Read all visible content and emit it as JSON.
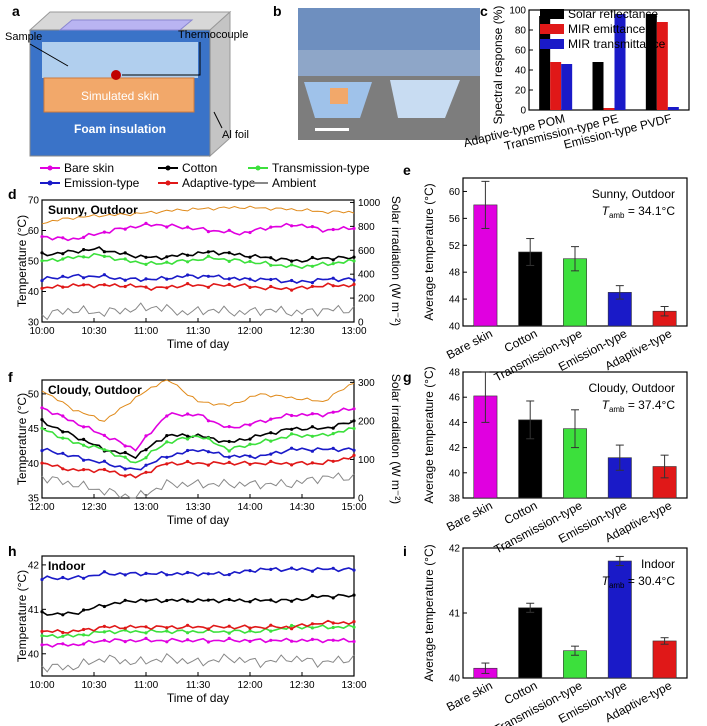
{
  "panel_labels": {
    "a": "a",
    "b": "b",
    "c": "c",
    "d": "d",
    "e": "e",
    "f": "f",
    "g": "g",
    "h": "h",
    "i": "i"
  },
  "panel_a": {
    "sample": "Sample",
    "thermocouple": "Thermocouple",
    "simulated_skin": "Simulated skin",
    "foam_insulation": "Foam insulation",
    "al_foil": "Al foil",
    "colors": {
      "skin": "#f2a86a",
      "foam": "#3a73c8",
      "box": "#d8d8d8",
      "top": "#b9b4f2"
    }
  },
  "panel_b": {
    "description_icon": "photo-outdoor-setup-icon"
  },
  "legend_main": {
    "items": [
      {
        "label": "Bare skin",
        "color": "#e000e0"
      },
      {
        "label": "Cotton",
        "color": "#000000"
      },
      {
        "label": "Transmission-type",
        "color": "#3ce03c"
      },
      {
        "label": "Emission-type",
        "color": "#1a1ac8"
      },
      {
        "label": "Adaptive-type",
        "color": "#e01818"
      },
      {
        "label": "Ambient",
        "color": "#888888"
      }
    ]
  },
  "chart_data": [
    {
      "id": "c",
      "type": "bar",
      "ylabel": "Spectral response (%)",
      "ylim": [
        0,
        100
      ],
      "yticks": [
        "0",
        "20",
        "40",
        "60",
        "80",
        "100"
      ],
      "categories": [
        "Adaptive-type POM",
        "Transmission-type PE",
        "Emission-type PVDF"
      ],
      "series": [
        {
          "name": "Solar reflectance",
          "color": "#000000",
          "values": [
            94,
            48,
            96
          ]
        },
        {
          "name": "MIR emittance",
          "color": "#e01818",
          "values": [
            48,
            2,
            88
          ]
        },
        {
          "name": "MIR transmittance",
          "color": "#1a1ac8",
          "values": [
            46,
            96,
            3
          ]
        }
      ]
    },
    {
      "id": "d",
      "type": "line",
      "annotation": "Sunny, Outdoor",
      "xlabel": "Time of day",
      "ylabel": "Temperature (°C)",
      "y2label": "Solar irradiation (W m⁻²)",
      "xticks": [
        "10:00",
        "10:30",
        "11:00",
        "11:30",
        "12:00",
        "12:30",
        "13:00"
      ],
      "ylim": [
        30,
        70
      ],
      "yticks": [
        "30",
        "40",
        "50",
        "60",
        "70"
      ],
      "y2ticks": [
        "0",
        "200",
        "400",
        "600",
        "800",
        "1000"
      ],
      "series": [
        {
          "name": "Bare skin",
          "values": [
            58,
            57,
            59,
            61,
            62,
            61,
            60,
            59,
            61,
            62,
            60,
            61
          ]
        },
        {
          "name": "Cotton",
          "values": [
            52,
            53,
            54,
            52,
            51,
            52,
            53,
            52,
            51,
            50,
            51,
            51
          ]
        },
        {
          "name": "Transmission-type",
          "values": [
            50,
            51,
            52,
            50,
            49,
            50,
            51,
            50,
            49,
            48,
            49,
            50
          ]
        },
        {
          "name": "Emission-type",
          "values": [
            44,
            45,
            45,
            44,
            44,
            45,
            45,
            44,
            44,
            43,
            44,
            44
          ]
        },
        {
          "name": "Adaptive-type",
          "values": [
            41,
            42,
            42,
            42,
            41,
            42,
            42,
            42,
            41,
            41,
            42,
            42
          ]
        },
        {
          "name": "Ambient",
          "values": [
            32,
            34,
            33,
            34,
            35,
            33,
            34,
            33,
            34,
            33,
            34,
            34
          ]
        },
        {
          "name": "Solar irradiation",
          "color": "#e08a1a",
          "values": [
            830,
            870,
            890,
            900,
            920,
            940,
            950,
            960,
            950,
            940,
            920,
            920
          ]
        }
      ]
    },
    {
      "id": "e",
      "type": "bar",
      "annotation": "Sunny, Outdoor",
      "tamb": "= 34.1°C",
      "ylabel": "Average temperature (°C)",
      "ylim": [
        40,
        62
      ],
      "yticks": [
        "40",
        "44",
        "48",
        "52",
        "56",
        "60"
      ],
      "categories": [
        "Bare skin",
        "Cotton",
        "Transmission-type",
        "Emission-type",
        "Adaptive-type"
      ],
      "values": [
        58.0,
        51.0,
        50.0,
        45.0,
        42.2
      ],
      "errors": [
        3.5,
        2.0,
        1.8,
        1.0,
        0.7
      ]
    },
    {
      "id": "f",
      "type": "line",
      "annotation": "Cloudy, Outdoor",
      "xlabel": "Time of day",
      "ylabel": "Temperature (°C)",
      "y2label": "Solar irradiation (W m⁻²)",
      "xticks": [
        "12:00",
        "12:30",
        "13:00",
        "13:30",
        "14:00",
        "14:30",
        "15:00"
      ],
      "ylim": [
        35,
        52
      ],
      "yticks": [
        "35",
        "40",
        "45",
        "50"
      ],
      "y2ticks": [
        "0",
        "100",
        "200",
        "300"
      ],
      "series": [
        {
          "name": "Bare skin",
          "values": [
            48,
            46,
            44,
            42,
            47,
            47,
            45,
            46,
            47,
            47,
            48
          ]
        },
        {
          "name": "Cotton",
          "values": [
            46,
            44,
            42,
            41,
            44,
            44,
            43,
            44,
            45,
            45,
            46
          ]
        },
        {
          "name": "Transmission-type",
          "values": [
            45,
            43,
            42,
            40,
            43,
            44,
            42,
            43,
            44,
            44,
            45
          ]
        },
        {
          "name": "Emission-type",
          "values": [
            42,
            41,
            40,
            39,
            41,
            42,
            41,
            41,
            42,
            42,
            42
          ]
        },
        {
          "name": "Adaptive-type",
          "values": [
            40,
            39,
            39,
            38,
            40,
            40,
            40,
            40,
            40,
            40,
            41
          ]
        },
        {
          "name": "Ambient",
          "values": [
            38,
            37,
            36,
            35,
            37,
            37,
            37,
            37,
            37,
            38,
            38
          ]
        },
        {
          "name": "Solar irradiation",
          "color": "#e08a1a",
          "values": [
            280,
            230,
            200,
            260,
            310,
            250,
            240,
            270,
            260,
            250,
            300
          ]
        }
      ]
    },
    {
      "id": "g",
      "type": "bar",
      "annotation": "Cloudy, Outdoor",
      "tamb": "= 37.4°C",
      "ylabel": "Average temperature (°C)",
      "ylim": [
        38,
        48
      ],
      "yticks": [
        "38",
        "40",
        "42",
        "44",
        "46",
        "48"
      ],
      "categories": [
        "Bare skin",
        "Cotton",
        "Transmission-type",
        "Emission-type",
        "Adaptive-type"
      ],
      "values": [
        46.1,
        44.2,
        43.5,
        41.2,
        40.5
      ],
      "errors": [
        2.1,
        1.5,
        1.5,
        1.0,
        0.9
      ]
    },
    {
      "id": "h",
      "type": "line",
      "annotation": "Indoor",
      "xlabel": "Time of day",
      "ylabel": "Temperature (°C)",
      "xticks": [
        "10:00",
        "10:30",
        "11:00",
        "11:30",
        "12:00",
        "12:30",
        "13:00"
      ],
      "ylim": [
        39.5,
        42.2
      ],
      "yticks": [
        "40",
        "41",
        "42"
      ],
      "series": [
        {
          "name": "Bare skin",
          "values": [
            40.2,
            40.2,
            40.3,
            40.3,
            40.3,
            40.3,
            40.3,
            40.3,
            40.3,
            40.3,
            40.3
          ]
        },
        {
          "name": "Cotton",
          "values": [
            40.9,
            40.9,
            41.1,
            41.2,
            41.2,
            41.2,
            41.2,
            41.2,
            41.2,
            41.3,
            41.3
          ]
        },
        {
          "name": "Transmission-type",
          "values": [
            40.4,
            40.4,
            40.5,
            40.5,
            40.5,
            40.5,
            40.5,
            40.5,
            40.6,
            40.6,
            40.6
          ]
        },
        {
          "name": "Emission-type",
          "values": [
            41.7,
            41.7,
            41.8,
            41.8,
            41.8,
            41.8,
            41.8,
            41.9,
            41.9,
            41.9,
            41.9
          ]
        },
        {
          "name": "Adaptive-type",
          "values": [
            40.5,
            40.5,
            40.6,
            40.6,
            40.6,
            40.6,
            40.6,
            40.6,
            40.6,
            40.7,
            40.7
          ]
        },
        {
          "name": "Ambient",
          "values": [
            39.7,
            39.7,
            39.9,
            39.8,
            39.9,
            39.8,
            39.9,
            39.8,
            39.9,
            39.8,
            39.9
          ]
        }
      ]
    },
    {
      "id": "i",
      "type": "bar",
      "annotation": "Indoor",
      "tamb": "= 30.4°C",
      "ylabel": "Average temperature (°C)",
      "ylim": [
        40,
        42
      ],
      "yticks": [
        "40",
        "41",
        "42"
      ],
      "categories": [
        "Bare skin",
        "Cotton",
        "Transmission-type",
        "Emission-type",
        "Adaptive-type"
      ],
      "values": [
        40.15,
        41.08,
        40.42,
        41.8,
        40.57
      ],
      "errors": [
        0.08,
        0.07,
        0.07,
        0.07,
        0.05
      ]
    }
  ]
}
